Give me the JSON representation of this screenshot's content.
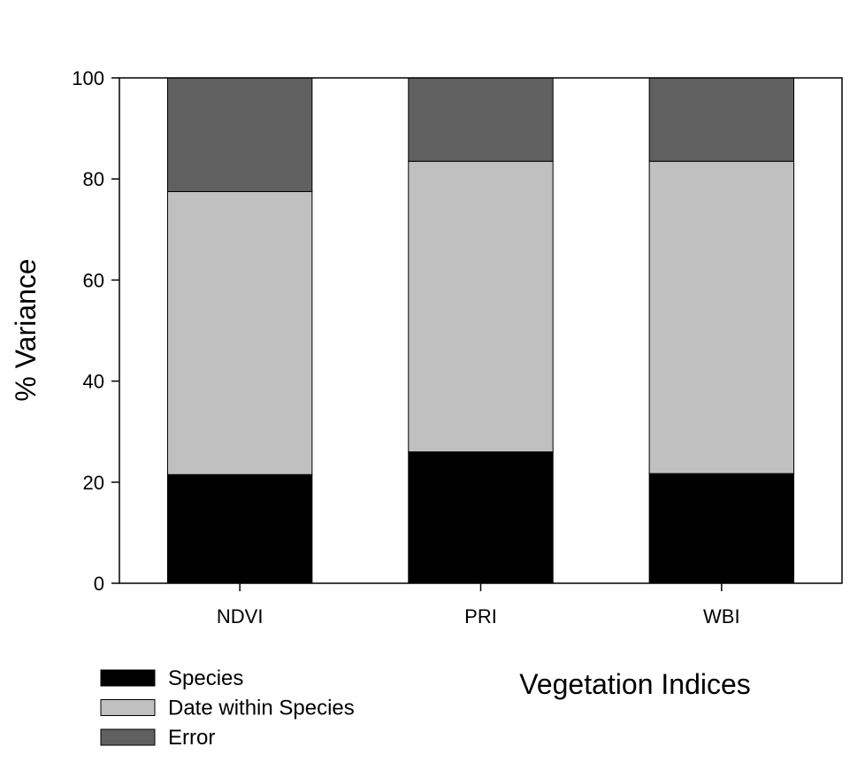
{
  "chart_data": {
    "type": "bar",
    "stacked": true,
    "title": "",
    "xlabel": "Vegetation Indices",
    "ylabel": "% Variance",
    "ylim": [
      0,
      100
    ],
    "yticks": [
      0,
      20,
      40,
      60,
      80,
      100
    ],
    "categories": [
      "NDVI",
      "PRI",
      "WBI"
    ],
    "series": [
      {
        "name": "Species",
        "values": [
          21.5,
          26,
          21.7
        ],
        "color": "#000000"
      },
      {
        "name": "Date within Species",
        "values": [
          56,
          57.5,
          61.8
        ],
        "color": "#c0c0c0"
      },
      {
        "name": "Error",
        "values": [
          22.5,
          16.5,
          16.5
        ],
        "color": "#606060"
      }
    ],
    "legend_position": "bottom-left",
    "grid": false
  }
}
